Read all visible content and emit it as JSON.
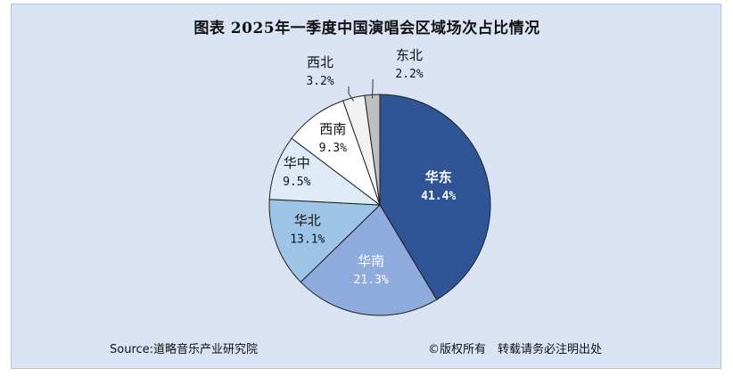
{
  "chart_data": {
    "type": "pie",
    "title": "图表 2025年一季度中国演唱会区域场次占比情况",
    "unit": "%",
    "slices": [
      {
        "name": "华东",
        "value": 41.4,
        "label": "41.4%",
        "color": "#2f5597"
      },
      {
        "name": "华南",
        "value": 21.3,
        "label": "21.3%",
        "color": "#8faadc"
      },
      {
        "name": "华北",
        "value": 13.1,
        "label": "13.1%",
        "color": "#9dc3e6"
      },
      {
        "name": "华中",
        "value": 9.5,
        "label": "9.5%",
        "color": "#deebf7"
      },
      {
        "name": "西南",
        "value": 9.3,
        "label": "9.3%",
        "color": "#ffffff"
      },
      {
        "name": "西北",
        "value": 3.2,
        "label": "3.2%",
        "color": "#f2f2f2"
      },
      {
        "name": "东北",
        "value": 2.2,
        "label": "2.2%",
        "color": "#bfbfbf"
      }
    ],
    "start_angle_deg": 0,
    "direction": "clockwise",
    "legend": "none"
  },
  "footer": {
    "source": "Source:道略音乐产业研究院",
    "copyright": "©版权所有　转载请务必注明出处"
  },
  "colors": {
    "background": "#dae3f3",
    "slice_border": "#1f1f1f"
  }
}
